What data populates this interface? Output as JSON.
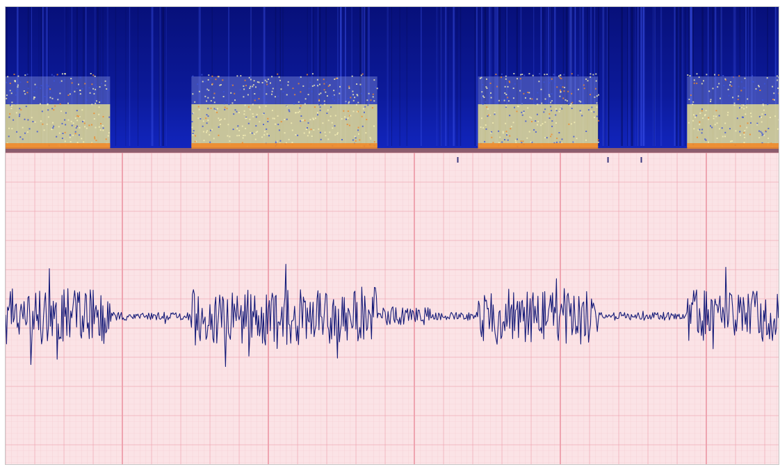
{
  "spectrogram": {
    "colors": {
      "background": "#0a1486",
      "deep": "#050a55",
      "mid": "#2a3fe0",
      "energy_high": "#e8e096",
      "energy_peak": "#f08a2a"
    },
    "bursts": [
      {
        "start": 0.0,
        "end": 0.135,
        "intensity": 0.85
      },
      {
        "start": 0.24,
        "end": 0.48,
        "intensity": 0.9
      },
      {
        "start": 0.61,
        "end": 0.765,
        "intensity": 0.85
      },
      {
        "start": 0.88,
        "end": 1.0,
        "intensity": 0.8
      }
    ]
  },
  "trace": {
    "colors": {
      "paper": "#fbe3e6",
      "grid_minor": "#f4c7cd",
      "grid_major": "#ee9fab",
      "line": "#141a78"
    },
    "markers": [
      0.583,
      0.777,
      0.82
    ]
  }
}
